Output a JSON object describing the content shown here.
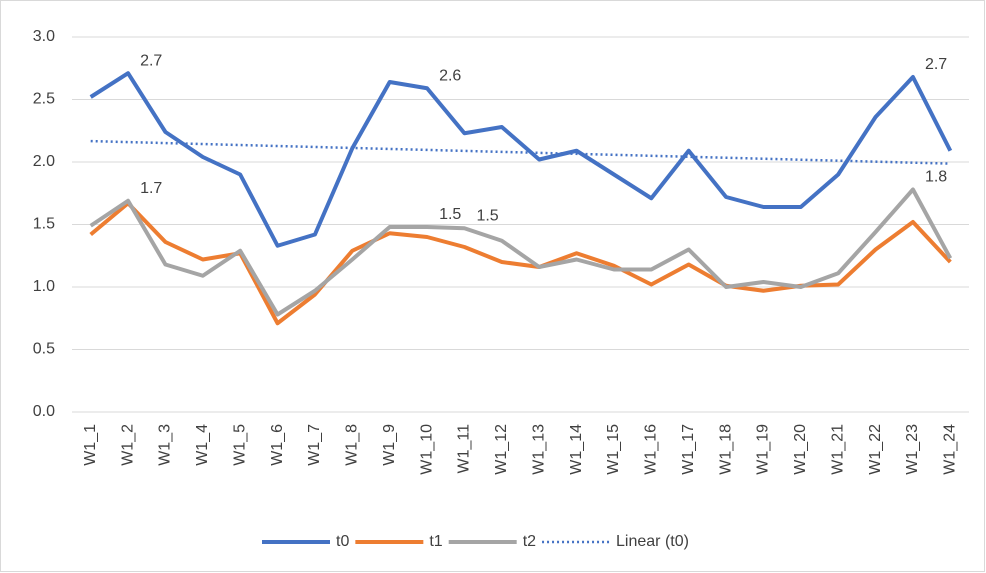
{
  "chart_data": {
    "type": "line",
    "categories": [
      "W1_1",
      "W1_2",
      "W1_3",
      "W1_4",
      "W1_5",
      "W1_6",
      "W1_7",
      "W1_8",
      "W1_9",
      "W1_10",
      "W1_11",
      "W1_12",
      "W1_13",
      "W1_14",
      "W1_15",
      "W1_16",
      "W1_17",
      "W1_18",
      "W1_19",
      "W1_20",
      "W1_21",
      "W1_22",
      "W1_23",
      "W1_24"
    ],
    "series": [
      {
        "name": "t0",
        "color": "#4472c4",
        "values": [
          2.52,
          2.71,
          2.24,
          2.04,
          1.9,
          1.33,
          1.42,
          2.11,
          2.64,
          2.59,
          2.23,
          2.28,
          2.02,
          2.09,
          1.9,
          1.71,
          2.09,
          1.72,
          1.64,
          1.64,
          1.9,
          2.36,
          2.68,
          2.09
        ],
        "value_labels": [
          null,
          "2.7",
          null,
          null,
          null,
          null,
          null,
          null,
          null,
          "2.6",
          null,
          null,
          null,
          null,
          null,
          null,
          null,
          null,
          null,
          null,
          null,
          null,
          "2.7",
          null
        ]
      },
      {
        "name": "t1",
        "color": "#ed7d31",
        "values": [
          1.42,
          1.67,
          1.36,
          1.22,
          1.27,
          0.71,
          0.94,
          1.29,
          1.43,
          1.4,
          1.32,
          1.2,
          1.16,
          1.27,
          1.17,
          1.02,
          1.18,
          1.01,
          0.97,
          1.01,
          1.02,
          1.3,
          1.52,
          1.2
        ]
      },
      {
        "name": "t2",
        "color": "#a5a5a5",
        "values": [
          1.49,
          1.69,
          1.18,
          1.09,
          1.29,
          0.78,
          0.97,
          1.22,
          1.48,
          1.48,
          1.47,
          1.37,
          1.16,
          1.22,
          1.14,
          1.14,
          1.3,
          1.0,
          1.04,
          1.0,
          1.11,
          1.44,
          1.78,
          1.23
        ],
        "value_labels": [
          null,
          "1.7",
          null,
          null,
          null,
          null,
          null,
          null,
          null,
          "1.5",
          "1.5",
          null,
          null,
          null,
          null,
          null,
          null,
          null,
          null,
          null,
          null,
          null,
          "1.8",
          null
        ]
      }
    ],
    "trendline": {
      "name": "Linear (t0)",
      "series": 0,
      "kind": "linear",
      "color": "#4472c4"
    },
    "ylim": [
      0,
      3
    ],
    "yticks": [
      {
        "value": 0,
        "label": "0.0"
      },
      {
        "value": 0.5,
        "label": "0.5"
      },
      {
        "value": 1,
        "label": "1.0"
      },
      {
        "value": 1.5,
        "label": "1.5"
      },
      {
        "value": 2,
        "label": "2.0"
      },
      {
        "value": 2.5,
        "label": "2.5"
      },
      {
        "value": 3,
        "label": "3.0"
      }
    ],
    "grid": true,
    "legend": "bottom"
  }
}
